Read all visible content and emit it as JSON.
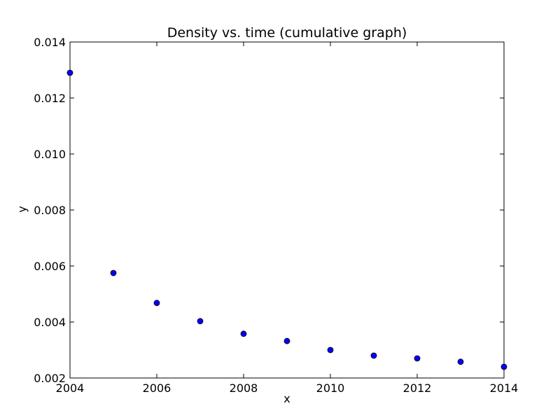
{
  "chart_data": {
    "type": "scatter",
    "title": "Density vs. time (cumulative graph)",
    "xlabel": "x",
    "ylabel": "y",
    "xlim": [
      2004,
      2014
    ],
    "ylim": [
      0.002,
      0.014
    ],
    "xticks": [
      2004,
      2006,
      2008,
      2010,
      2012,
      2014
    ],
    "xtick_labels": [
      "2004",
      "2006",
      "2008",
      "2010",
      "2012",
      "2014"
    ],
    "yticks": [
      0.002,
      0.004,
      0.006,
      0.008,
      0.01,
      0.012,
      0.014
    ],
    "ytick_labels": [
      "0.002",
      "0.004",
      "0.006",
      "0.008",
      "0.010",
      "0.012",
      "0.014"
    ],
    "grid": false,
    "marker_color": "#0000ff",
    "marker_edge_color": "#000000",
    "series": [
      {
        "x": [
          2004,
          2005,
          2006,
          2007,
          2008,
          2009,
          2010,
          2011,
          2012,
          2013,
          2014
        ],
        "y": [
          0.0129,
          0.00575,
          0.00468,
          0.00403,
          0.00358,
          0.00332,
          0.003,
          0.0028,
          0.0027,
          0.00258,
          0.0024
        ]
      }
    ]
  }
}
